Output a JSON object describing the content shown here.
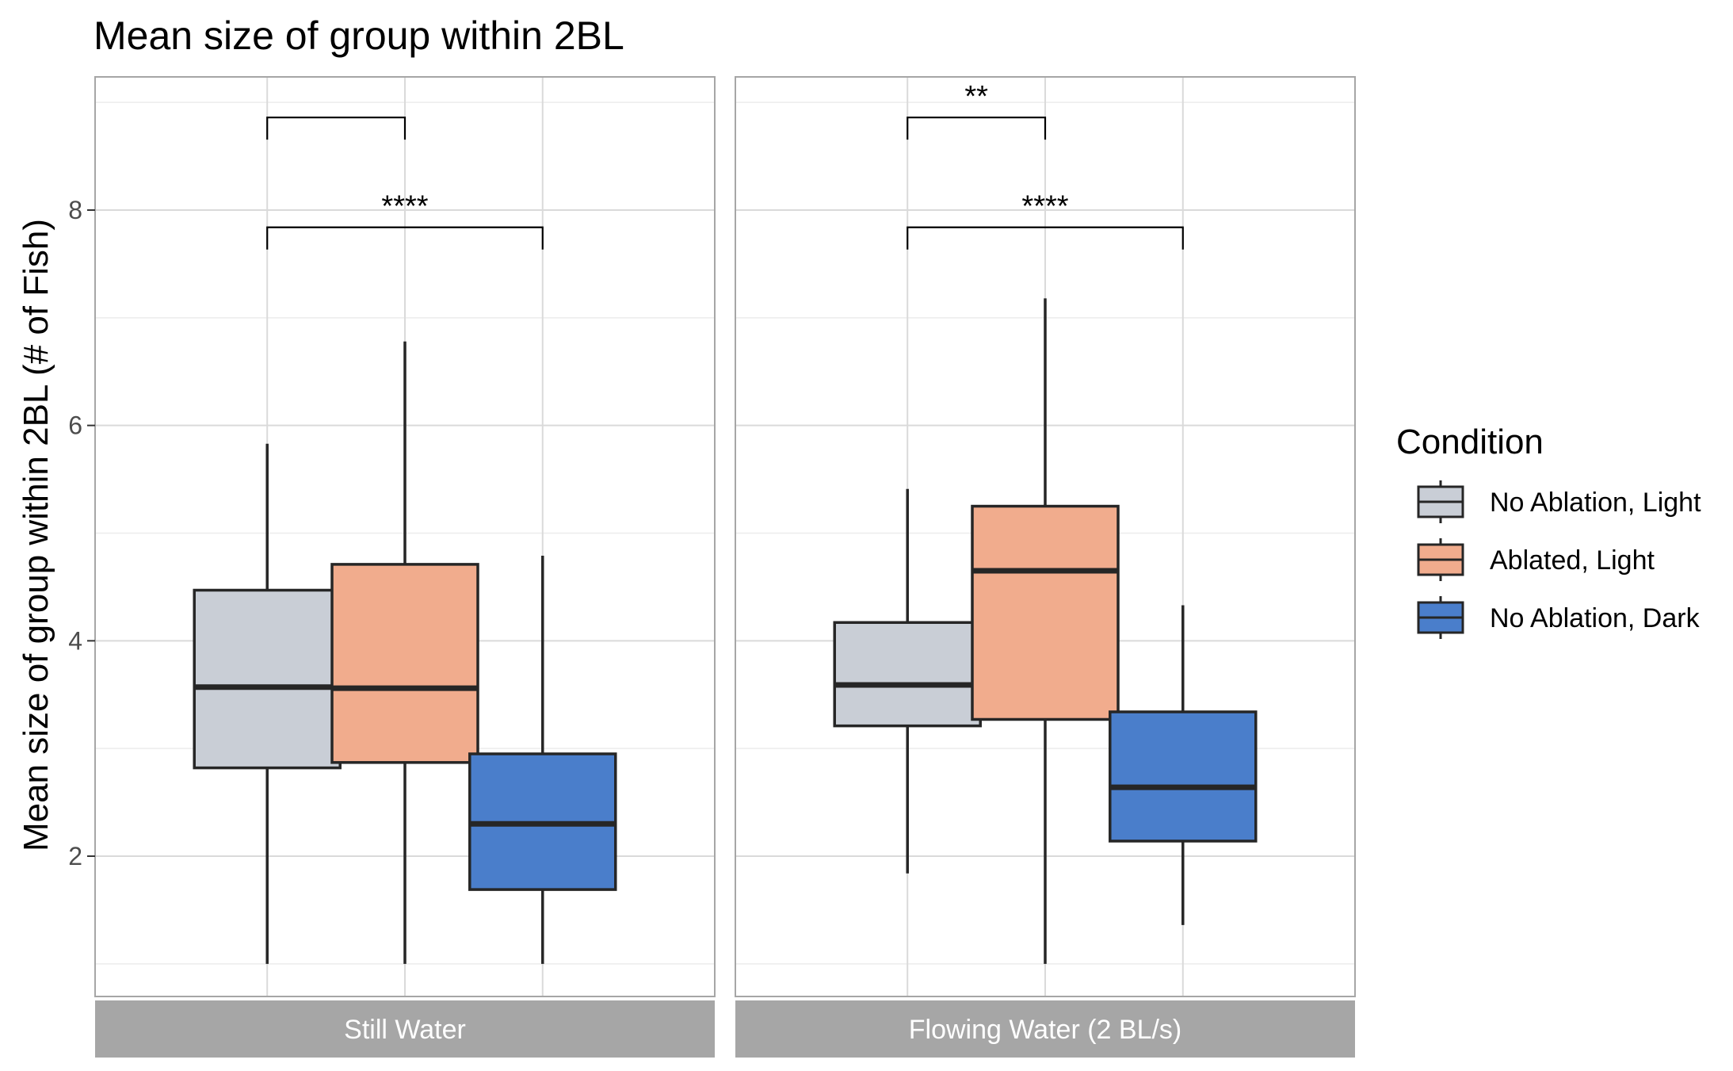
{
  "chart_data": {
    "type": "boxplot",
    "title": "Mean size of group within 2BL",
    "ylabel": "Mean size of group within 2BL (# of Fish)",
    "xlabel": "",
    "ylim": [
      0.6,
      9.2
    ],
    "yticks": [
      2,
      4,
      6,
      8
    ],
    "grid": true,
    "legend": {
      "title": "Condition",
      "position": "right",
      "entries": [
        {
          "name": "No Ablation, Light",
          "color": "#c9ced6"
        },
        {
          "name": "Ablated, Light",
          "color": "#f1ac8d"
        },
        {
          "name": "No Ablation, Dark",
          "color": "#4a7ecb"
        }
      ]
    },
    "facets": [
      {
        "label": "Still Water",
        "boxes": [
          {
            "group": "No Ablation, Light",
            "min": 1.0,
            "q1": 2.82,
            "median": 3.57,
            "q3": 4.47,
            "max": 5.83
          },
          {
            "group": "Ablated, Light",
            "min": 1.0,
            "q1": 2.87,
            "median": 3.56,
            "q3": 4.71,
            "max": 6.78
          },
          {
            "group": "No Ablation, Dark",
            "min": 1.0,
            "q1": 1.69,
            "median": 2.3,
            "q3": 2.95,
            "max": 4.79
          }
        ],
        "significance": [
          {
            "from": 0,
            "to": 1,
            "label": "",
            "y": 8.86
          },
          {
            "from": 0,
            "to": 2,
            "label": "****",
            "y": 7.84
          }
        ]
      },
      {
        "label": "Flowing Water (2 BL/s)",
        "boxes": [
          {
            "group": "No Ablation, Light",
            "min": 1.84,
            "q1": 3.21,
            "median": 3.59,
            "q3": 4.17,
            "max": 5.41
          },
          {
            "group": "Ablated, Light",
            "min": 1.0,
            "q1": 3.27,
            "median": 4.65,
            "q3": 5.25,
            "max": 7.18
          },
          {
            "group": "No Ablation, Dark",
            "min": 1.36,
            "q1": 2.14,
            "median": 2.64,
            "q3": 3.34,
            "max": 4.33
          }
        ],
        "significance": [
          {
            "from": 0,
            "to": 1,
            "label": "**",
            "y": 8.86
          },
          {
            "from": 0,
            "to": 2,
            "label": "****",
            "y": 7.84
          }
        ]
      }
    ]
  },
  "colors": {
    "strip_bg": "#a6a6a6",
    "panel_border": "#a6a6a6",
    "grid_major": "#dadada",
    "grid_minor": "#ececec",
    "box_stroke": "#262626"
  }
}
